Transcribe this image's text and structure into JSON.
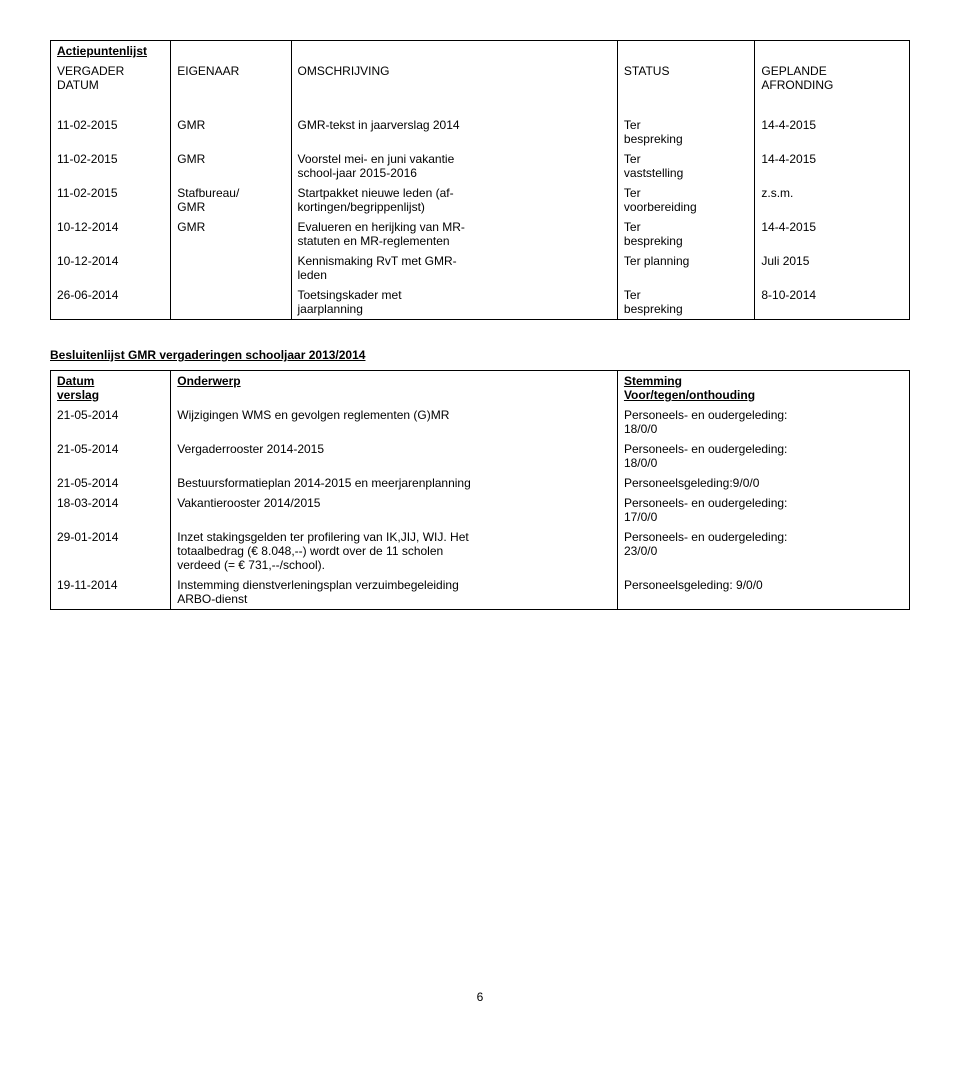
{
  "actie_table": {
    "title": "Actiepuntenlijst",
    "headers": {
      "c1a": "VERGADER",
      "c1b": "DATUM",
      "c2": "EIGENAAR",
      "c3": "OMSCHRIJVING",
      "c4": "STATUS",
      "c5a": "GEPLANDE",
      "c5b": "AFRONDING"
    },
    "rows": [
      {
        "c1": "11-02-2015",
        "c2": "GMR",
        "c3": "GMR-tekst in jaarverslag 2014",
        "c4a": "Ter",
        "c4b": "bespreking",
        "c5": "14-4-2015"
      },
      {
        "c1": "11-02-2015",
        "c2": "GMR",
        "c3a": "Voorstel mei- en juni vakantie",
        "c3b": "school-jaar 2015-2016",
        "c4a": "Ter",
        "c4b": "vaststelling",
        "c5": "14-4-2015"
      },
      {
        "c1": "11-02-2015",
        "c2a": "Stafbureau/",
        "c2b": "GMR",
        "c3a": "Startpakket nieuwe leden (af-",
        "c3b": "kortingen/begrippenlijst)",
        "c4a": "Ter",
        "c4b": "voorbereiding",
        "c5": "z.s.m."
      },
      {
        "c1": "10-12-2014",
        "c2": "GMR",
        "c3a": "Evalueren en herijking van MR-",
        "c3b": "statuten en MR-reglementen",
        "c4a": "Ter",
        "c4b": "bespreking",
        "c5": "14-4-2015"
      },
      {
        "c1": "10-12-2014",
        "c2": "",
        "c3a": "Kennismaking RvT met GMR-",
        "c3b": "leden",
        "c4": "Ter planning",
        "c5": "Juli 2015"
      },
      {
        "c1": "26-06-2014",
        "c2": "",
        "c3a": "Toetsingskader met",
        "c3b": "jaarplanning",
        "c4a": "Ter",
        "c4b": "bespreking",
        "c5": "8-10-2014"
      }
    ]
  },
  "besluit": {
    "heading": "Besluitenlijst GMR vergaderingen schooljaar 2013/2014",
    "headers": {
      "c1a": "Datum",
      "c1b": "verslag",
      "c2": "Onderwerp",
      "c3a": "Stemming",
      "c3b": "Voor/tegen/onthouding"
    },
    "rows": [
      {
        "c1": "21-05-2014",
        "c2": "Wijzigingen WMS en gevolgen reglementen (G)MR",
        "c3a": "Personeels- en oudergeleding:",
        "c3b": "18/0/0"
      },
      {
        "c1": "21-05-2014",
        "c2": "Vergaderrooster 2014-2015",
        "c3a": "Personeels- en oudergeleding:",
        "c3b": "18/0/0"
      },
      {
        "c1": "21-05-2014",
        "c2": "Bestuursformatieplan 2014-2015 en meerjarenplanning",
        "c3": "Personeelsgeleding:9/0/0"
      },
      {
        "c1": "18-03-2014",
        "c2": "Vakantierooster 2014/2015",
        "c3a": "Personeels- en oudergeleding:",
        "c3b": "17/0/0"
      },
      {
        "c1": "29-01-2014",
        "c2a": "Inzet stakingsgelden ter profilering van IK,JIJ, WIJ. Het",
        "c2b": "totaalbedrag (€ 8.048,--) wordt over de 11 scholen",
        "c2c": "verdeed (= € 731,--/school).",
        "c3a": "Personeels- en oudergeleding:",
        "c3b": "23/0/0"
      },
      {
        "c1": "19-11-2014",
        "c2a": "Instemming dienstverleningsplan verzuimbegeleiding",
        "c2b": "ARBO-dienst",
        "c3": "Personeelsgeleding: 9/0/0"
      }
    ]
  },
  "page_number": "6"
}
